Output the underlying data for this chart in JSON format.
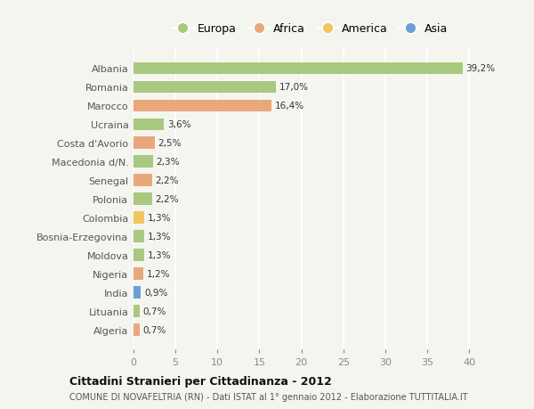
{
  "categories": [
    "Albania",
    "Romania",
    "Marocco",
    "Ucraina",
    "Costa d'Avorio",
    "Macedonia d/N.",
    "Senegal",
    "Polonia",
    "Colombia",
    "Bosnia-Erzegovina",
    "Moldova",
    "Nigeria",
    "India",
    "Lituania",
    "Algeria"
  ],
  "values": [
    39.2,
    17.0,
    16.4,
    3.6,
    2.5,
    2.3,
    2.2,
    2.2,
    1.3,
    1.3,
    1.3,
    1.2,
    0.9,
    0.7,
    0.7
  ],
  "labels": [
    "39,2%",
    "17,0%",
    "16,4%",
    "3,6%",
    "2,5%",
    "2,3%",
    "2,2%",
    "2,2%",
    "1,3%",
    "1,3%",
    "1,3%",
    "1,2%",
    "0,9%",
    "0,7%",
    "0,7%"
  ],
  "continents": [
    "Europa",
    "Europa",
    "Africa",
    "Europa",
    "Africa",
    "Europa",
    "Africa",
    "Europa",
    "America",
    "Europa",
    "Europa",
    "Africa",
    "Asia",
    "Europa",
    "Africa"
  ],
  "colors": {
    "Europa": "#a8c97f",
    "Africa": "#e8a87c",
    "America": "#f0c75e",
    "Asia": "#6b9fd4"
  },
  "legend_items": [
    "Europa",
    "Africa",
    "America",
    "Asia"
  ],
  "title_main": "Cittadini Stranieri per Cittadinanza - 2012",
  "title_sub": "COMUNE DI NOVAFELTRIA (RN) - Dati ISTAT al 1° gennaio 2012 - Elaborazione TUTTITALIA.IT",
  "xlim": [
    0,
    42
  ],
  "xticks": [
    0,
    5,
    10,
    15,
    20,
    25,
    30,
    35,
    40
  ],
  "background_color": "#f5f5f0",
  "grid_color": "#ffffff"
}
